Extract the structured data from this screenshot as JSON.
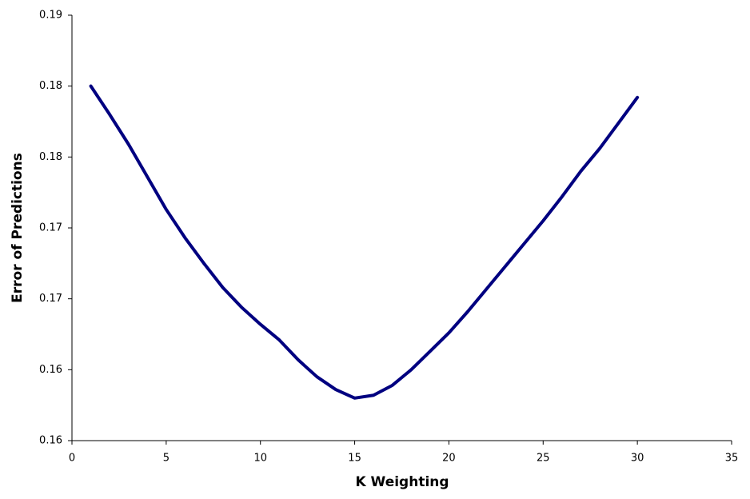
{
  "chart_data": {
    "type": "line",
    "x_label": "K Weighting",
    "y_label": "Error of Predictions",
    "x": [
      1,
      2,
      3,
      4,
      5,
      6,
      7,
      8,
      9,
      10,
      11,
      12,
      13,
      14,
      15,
      16,
      17,
      18,
      19,
      20,
      21,
      22,
      23,
      24,
      25,
      26,
      27,
      28,
      29,
      30
    ],
    "series": [
      {
        "name": "Error",
        "color": "#000080",
        "values": [
          0.185,
          0.183,
          0.1809,
          0.1786,
          0.1763,
          0.1743,
          0.1725,
          0.1708,
          0.1694,
          0.1682,
          0.1671,
          0.1657,
          0.1645,
          0.1636,
          0.163,
          0.1632,
          0.1639,
          0.165,
          0.1663,
          0.1676,
          0.1691,
          0.1707,
          0.1723,
          0.1739,
          0.1755,
          0.1772,
          0.179,
          0.1806,
          0.1824,
          0.1842
        ]
      }
    ],
    "xlim": [
      0,
      35
    ],
    "xticks": [
      0,
      5,
      10,
      15,
      20,
      25,
      30,
      35
    ],
    "ylim": [
      0.16,
      0.19
    ],
    "yticks": [
      {
        "value": 0.16,
        "label": "0.16"
      },
      {
        "value": 0.165,
        "label": "0.16"
      },
      {
        "value": 0.17,
        "label": "0.17"
      },
      {
        "value": 0.175,
        "label": "0.17"
      },
      {
        "value": 0.18,
        "label": "0.18"
      },
      {
        "value": 0.185,
        "label": "0.18"
      },
      {
        "value": 0.19,
        "label": "0.19"
      }
    ],
    "grid": false
  }
}
